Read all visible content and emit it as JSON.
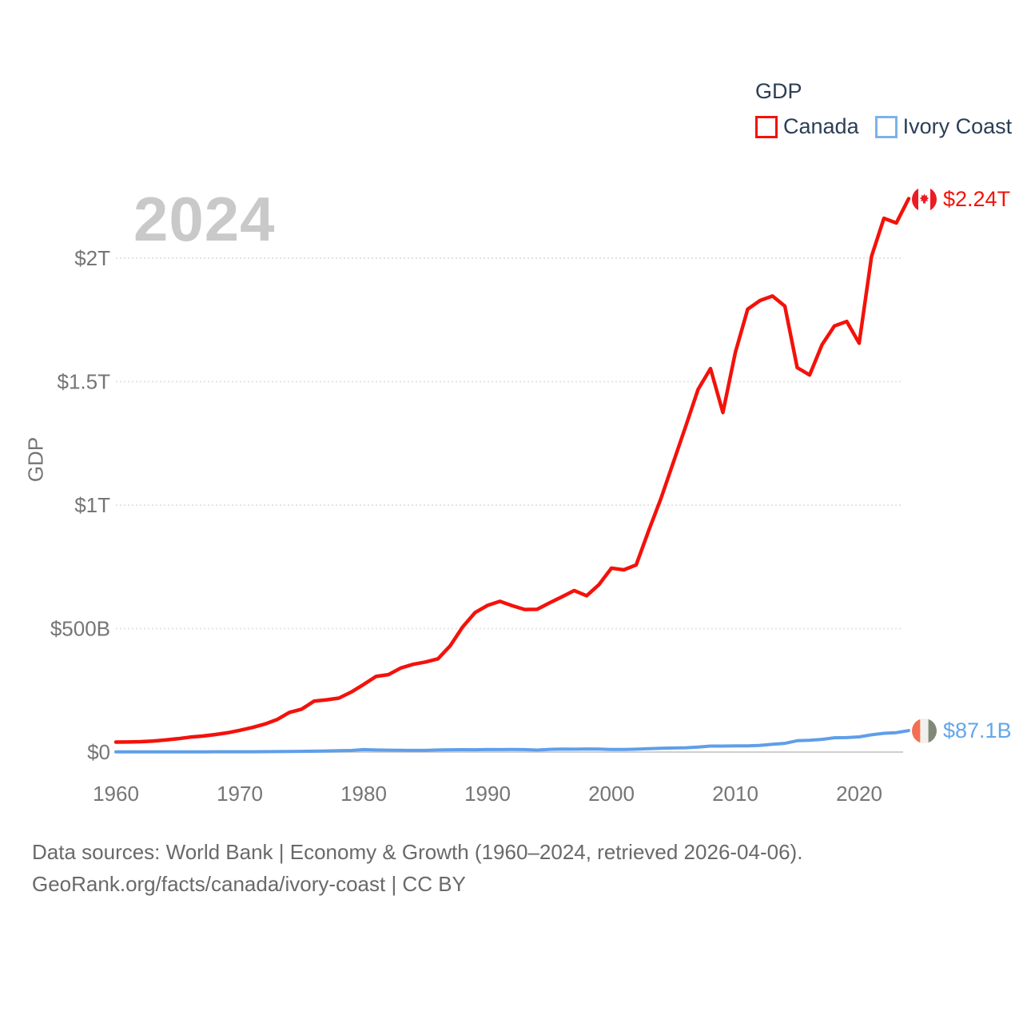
{
  "legend": {
    "title": "GDP",
    "items": [
      {
        "label": "Canada",
        "color": "#f3120b"
      },
      {
        "label": "Ivory Coast",
        "color": "#7db2ea"
      }
    ]
  },
  "watermark": "2024",
  "chart_data": {
    "type": "line",
    "title": "GDP",
    "ylabel": "GDP",
    "xlabel": "",
    "grid": true,
    "legend_position": "top-right",
    "x_range": [
      1960,
      2024
    ],
    "y_range_billions": [
      0,
      2000
    ],
    "x_ticks": [
      1960,
      1970,
      1980,
      1990,
      2000,
      2010,
      2020
    ],
    "y_ticks": [
      {
        "value": 0,
        "label": "$0"
      },
      {
        "value": 500,
        "label": "$500B"
      },
      {
        "value": 1000,
        "label": "$1T"
      },
      {
        "value": 1500,
        "label": "$1.5T"
      },
      {
        "value": 2000,
        "label": "$2T"
      }
    ],
    "years": [
      1960,
      1961,
      1962,
      1963,
      1964,
      1965,
      1966,
      1967,
      1968,
      1969,
      1970,
      1971,
      1972,
      1973,
      1974,
      1975,
      1976,
      1977,
      1978,
      1979,
      1980,
      1981,
      1982,
      1983,
      1984,
      1985,
      1986,
      1987,
      1988,
      1989,
      1990,
      1991,
      1992,
      1993,
      1994,
      1995,
      1996,
      1997,
      1998,
      1999,
      2000,
      2001,
      2002,
      2003,
      2004,
      2005,
      2006,
      2007,
      2008,
      2009,
      2010,
      2011,
      2012,
      2013,
      2014,
      2015,
      2016,
      2017,
      2018,
      2019,
      2020,
      2021,
      2022,
      2023,
      2024
    ],
    "series": [
      {
        "name": "Canada",
        "color": "#f3120b",
        "end_label": "$2.24T",
        "values_billions_usd": [
          40.5,
          40.9,
          42.2,
          44.7,
          48.9,
          53.9,
          60.4,
          64.8,
          70.8,
          77.9,
          87.9,
          99.3,
          113.1,
          131.3,
          160.4,
          173.8,
          206.6,
          211.6,
          218.5,
          243.1,
          273.9,
          306.2,
          313.5,
          340.5,
          355.4,
          364.8,
          377.7,
          431.2,
          507.2,
          565.0,
          593.9,
          610.3,
          592.4,
          577.2,
          578.1,
          604.0,
          628.5,
          654.2,
          633.1,
          678.4,
          744.8,
          738.0,
          757.9,
          895.5,
          1026.7,
          1173.1,
          1319.3,
          1468.8,
          1552.9,
          1374.6,
          1617.3,
          1793.3,
          1828.4,
          1846.6,
          1805.8,
          1556.5,
          1527.0,
          1649.3,
          1725.3,
          1743.7,
          1655.7,
          2007.5,
          2161.5,
          2142.5,
          2241.0
        ]
      },
      {
        "name": "Ivory Coast",
        "color": "#5f9ee9",
        "end_label": "$87.1B",
        "values_billions_usd": [
          0.55,
          0.62,
          0.63,
          0.72,
          0.83,
          0.87,
          0.93,
          0.98,
          1.15,
          1.24,
          1.36,
          1.44,
          1.58,
          1.96,
          2.48,
          2.94,
          3.45,
          4.59,
          5.84,
          6.61,
          10.18,
          8.45,
          7.65,
          6.98,
          6.83,
          6.79,
          8.52,
          9.48,
          9.79,
          9.31,
          10.8,
          10.17,
          10.72,
          10.03,
          8.18,
          11.0,
          12.14,
          11.72,
          12.61,
          12.39,
          10.42,
          10.58,
          11.49,
          13.74,
          15.49,
          16.37,
          17.37,
          20.27,
          24.23,
          24.28,
          24.88,
          25.38,
          27.04,
          31.29,
          35.39,
          45.81,
          47.94,
          51.59,
          58.01,
          58.54,
          61.35,
          69.77,
          76.0,
          78.79,
          87.1
        ]
      }
    ]
  },
  "footer": {
    "line1": "Data sources: World Bank | Economy & Growth (1960–2024, retrieved 2026-04-06).",
    "line2": "GeoRank.org/facts/canada/ivory-coast | CC BY"
  }
}
